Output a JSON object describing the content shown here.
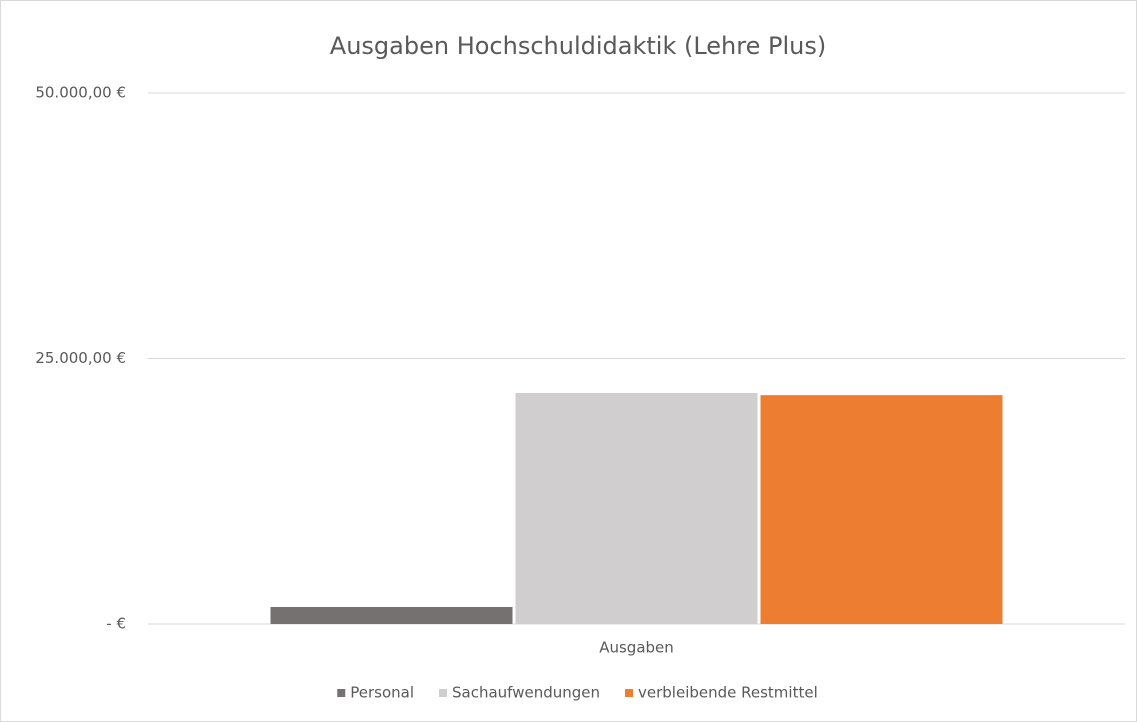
{
  "chart_data": {
    "type": "bar",
    "title": "Ausgaben Hochschuldidaktik (Lehre Plus)",
    "categories": [
      "Ausgaben"
    ],
    "series": [
      {
        "name": "Personal",
        "color": "#767171",
        "values": [
          1600
        ]
      },
      {
        "name": "Sachaufwendungen",
        "color": "#d0cece",
        "values": [
          21750
        ]
      },
      {
        "name": "verbleibende Restmittel",
        "color": "#ed7d31",
        "values": [
          21550
        ]
      }
    ],
    "ylim": [
      0,
      50000
    ],
    "yticks": [
      {
        "value": 0,
        "label": "-  €"
      },
      {
        "value": 25000,
        "label": "25.000,00 €"
      },
      {
        "value": 50000,
        "label": "50.000,00 €"
      }
    ],
    "grid": true,
    "legend": "bottom"
  }
}
